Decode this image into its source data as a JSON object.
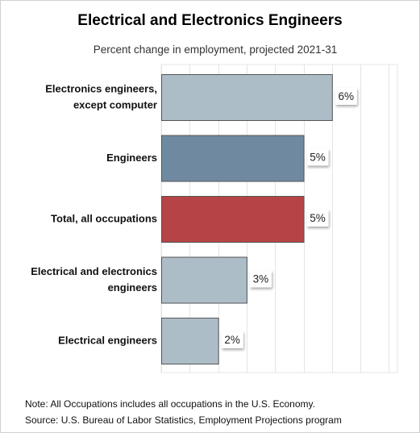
{
  "chart_data": {
    "type": "bar",
    "orientation": "horizontal",
    "title": "Electrical and Electronics Engineers",
    "subtitle": "Percent change in employment, projected 2021-31",
    "categories": [
      [
        "Electronics engineers,",
        "except computer"
      ],
      [
        "Engineers"
      ],
      [
        "Total, all occupations"
      ],
      [
        "Electrical and electronics",
        "engineers"
      ],
      [
        "Electrical engineers"
      ]
    ],
    "values": [
      6,
      5,
      5,
      3,
      2
    ],
    "value_labels": [
      "6%",
      "5%",
      "5%",
      "3%",
      "2%"
    ],
    "bar_colors": [
      "#adbdc8",
      "#6f8aa0",
      "#b64446",
      "#adbdc8",
      "#adbdc8"
    ],
    "xlim": [
      0,
      8.3
    ],
    "grid": true
  },
  "notes": {
    "line1": "Note: All Occupations includes all occupations in the U.S. Economy.",
    "line2": "Source: U.S. Bureau of Labor Statistics, Employment Projections program"
  },
  "colors": {
    "grid": "#e4e4e4",
    "bar_stroke": "#555555",
    "label_box": "#ffffff"
  }
}
